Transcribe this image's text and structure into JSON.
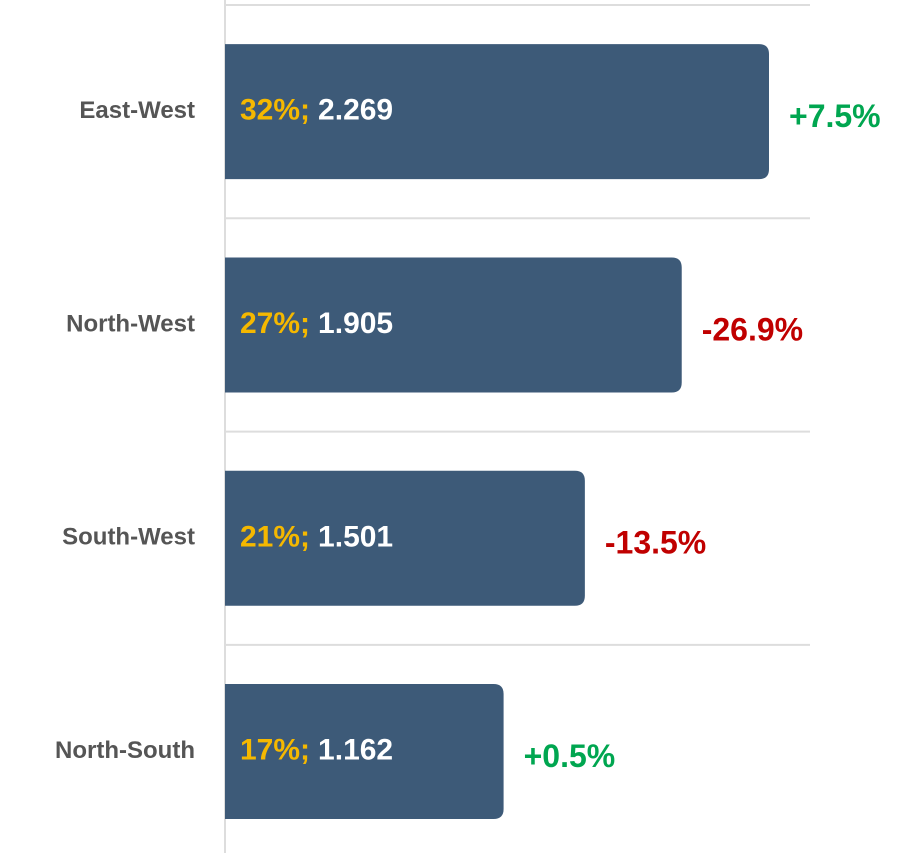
{
  "chart_data": {
    "type": "bar",
    "orientation": "horizontal",
    "categories": [
      "East-West",
      "North-West",
      "South-West",
      "North-South"
    ],
    "values": [
      2.269,
      1.905,
      1.501,
      1.162
    ],
    "color": "#3d5a78",
    "shares": {
      "values": [
        32,
        27,
        21,
        17
      ],
      "value_labels": [
        "32%;",
        "27%;",
        "21%;",
        "17%;"
      ],
      "color": "#f5b800"
    },
    "changes": {
      "values": [
        7.5,
        -26.9,
        -13.5,
        0.5
      ],
      "value_labels": [
        "+7.5%",
        "-26.9%",
        "-13.5%",
        "+0.5%"
      ],
      "positive_color": "#00a650",
      "negative_color": "#c00000"
    },
    "grid": true
  }
}
